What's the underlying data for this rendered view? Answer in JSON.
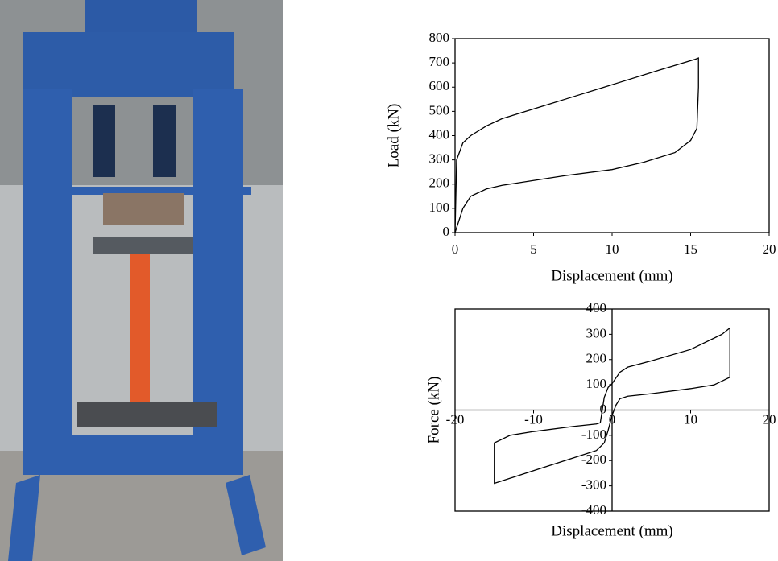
{
  "chart_data": [
    {
      "type": "line",
      "x_label": "Displacement (mm)",
      "y_label": "Load (kN)",
      "color": "#000000",
      "x": [
        0,
        0.1,
        0.5,
        1,
        2,
        3,
        5,
        7,
        10,
        13,
        15.3,
        15.5,
        15.5,
        15.4,
        15,
        14,
        12,
        10,
        7,
        5,
        3,
        2,
        1,
        0.5,
        0.2,
        0
      ],
      "values": [
        0,
        300,
        370,
        400,
        440,
        470,
        510,
        550,
        610,
        670,
        715,
        720,
        600,
        430,
        380,
        330,
        290,
        260,
        235,
        215,
        195,
        180,
        150,
        100,
        40,
        0
      ],
      "xlim": [
        0,
        20
      ],
      "xticks": [
        0,
        5,
        10,
        15,
        20
      ],
      "ylim": [
        0,
        800
      ],
      "yticks": [
        0,
        100,
        200,
        300,
        400,
        500,
        600,
        700,
        800
      ],
      "frame": true,
      "zero_axes": false
    },
    {
      "type": "line",
      "x_label": "Displacement (mm)",
      "y_label": "Force (kN)",
      "color": "#000000",
      "x": [
        -1.5,
        -1,
        -0.5,
        0,
        1,
        2,
        5,
        10,
        14,
        15,
        15,
        15,
        13,
        10,
        5,
        2,
        1,
        0.5,
        0,
        -0.5,
        -1,
        -2,
        -5,
        -10,
        -14,
        -15,
        -15,
        -15,
        -13,
        -10,
        -5,
        -2,
        -1.5
      ],
      "values": [
        -50,
        50,
        90,
        105,
        150,
        170,
        195,
        240,
        300,
        325,
        200,
        130,
        100,
        85,
        65,
        55,
        45,
        20,
        -20,
        -80,
        -130,
        -160,
        -190,
        -240,
        -280,
        -290,
        -200,
        -130,
        -100,
        -85,
        -65,
        -55,
        -50
      ],
      "xlim": [
        -20,
        20
      ],
      "xticks": [
        -20,
        -10,
        0,
        10,
        20
      ],
      "ylim": [
        -400,
        400
      ],
      "yticks": [
        -400,
        -300,
        -200,
        -100,
        0,
        100,
        200,
        300,
        400
      ],
      "frame": true,
      "zero_axes": true
    }
  ]
}
